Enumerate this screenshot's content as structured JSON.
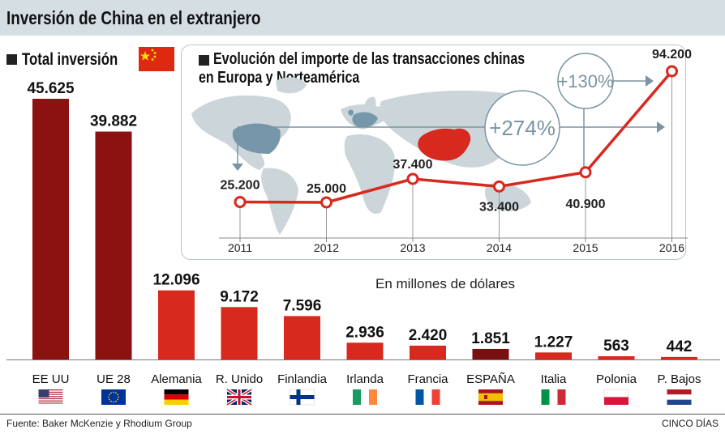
{
  "header": {
    "title": "Inversión de China en el extranjero"
  },
  "left_section": {
    "title": "Total inversión",
    "flag": "china-flag"
  },
  "inset": {
    "title_line1": "Evolución del importe de las transacciones chinas",
    "title_line2": "en Europa y Norteamérica"
  },
  "units_note": "En millones de dólares",
  "footer": {
    "source": "Fuente: Baker McKenzie y Rhodium Group",
    "brand": "CINCO DÍAS"
  },
  "colors": {
    "header_bg": "#d4dee3",
    "dark_red": "#8c1212",
    "red": "#d8291f",
    "spain": "#7a0f0f",
    "map_gray": "#ccd5da",
    "map_blue": "#7696a9",
    "china": "#d8291f",
    "line": "#d8291f"
  },
  "chart_data": [
    {
      "type": "bar",
      "title": "Total inversión",
      "categories": [
        "EE UU",
        "UE 28",
        "Alemania",
        "R. Unido",
        "Finlandia",
        "Irlanda",
        "Francia",
        "ESPAÑA",
        "Italia",
        "Polonia",
        "P. Bajos"
      ],
      "values": [
        45625,
        39882,
        12096,
        9172,
        7596,
        2936,
        2420,
        1851,
        1227,
        563,
        442
      ],
      "labels": [
        "45.625",
        "39.882",
        "12.096",
        "9.172",
        "7.596",
        "2.936",
        "2.420",
        "1.851",
        "1.227",
        "563",
        "442"
      ],
      "flags": [
        "us-flag",
        "eu-flag",
        "germany-flag",
        "uk-flag",
        "finland-flag",
        "ireland-flag",
        "france-flag",
        "spain-flag",
        "italy-flag",
        "poland-flag",
        "netherlands-flag"
      ],
      "ylim": [
        0,
        45625
      ],
      "grid": false
    },
    {
      "type": "line",
      "title": "Evolución del importe de las transacciones chinas en Europa y Norteamérica",
      "x": [
        "2011",
        "2012",
        "2013",
        "2014",
        "2015",
        "2016"
      ],
      "values": [
        25200,
        25000,
        37400,
        33400,
        40900,
        94200
      ],
      "labels": [
        "25.200",
        "25.000",
        "37.400",
        "33.400",
        "40.900",
        "94.200"
      ],
      "annotations": [
        "+274%",
        "+130%"
      ],
      "grid": false
    }
  ]
}
